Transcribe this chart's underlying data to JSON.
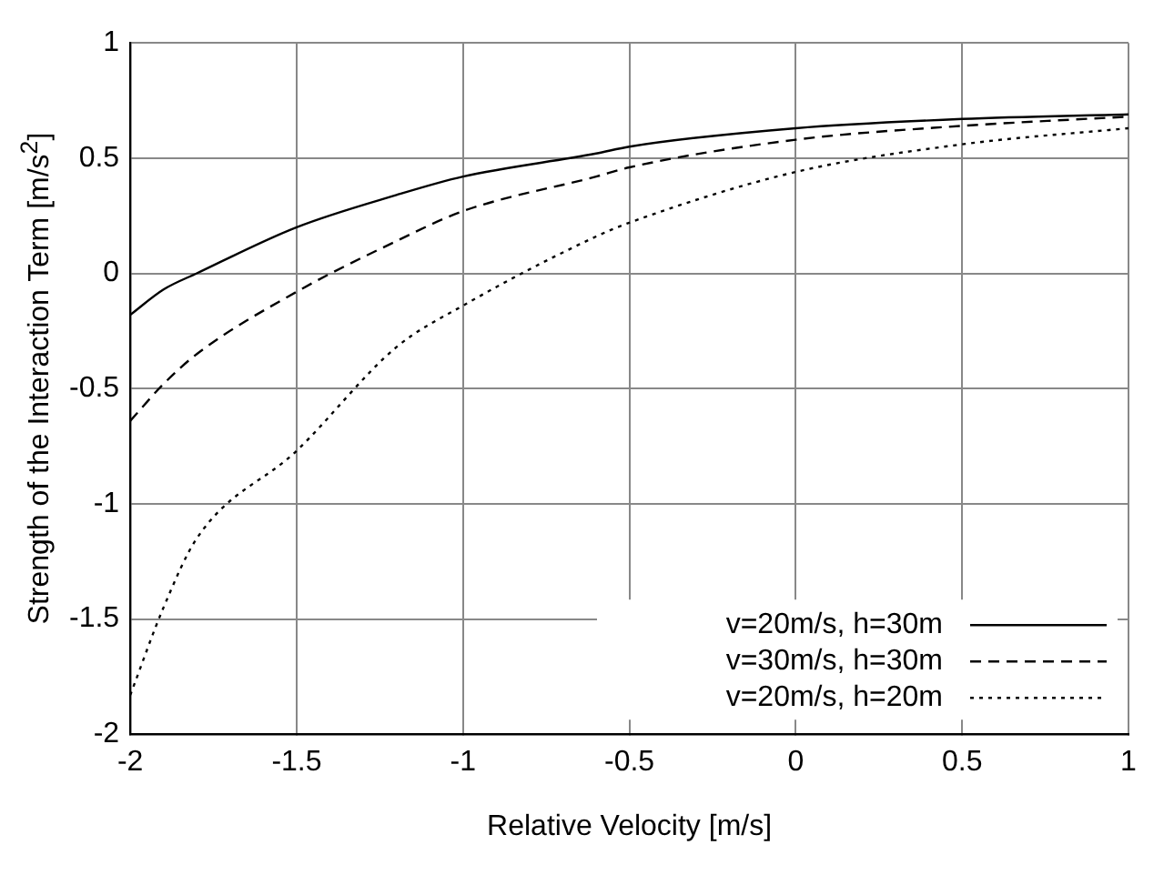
{
  "chart_data": {
    "type": "line",
    "xlabel": "Relative Velocity [m/s]",
    "ylabel": "Strength of the Interaction Term [m/s$^{2}$]",
    "x": [
      -2,
      -1.9,
      -1.8,
      -1.5,
      -1.2,
      -1,
      -0.6,
      -0.5,
      0,
      0.5,
      1
    ],
    "series": [
      {
        "name": "v=20m/s, h=30m",
        "color": "#000000",
        "line_style": "solid",
        "values": [
          -0.18,
          -0.07,
          0,
          0.2,
          0.34,
          0.42,
          0.52,
          0.55,
          0.63,
          0.67,
          0.69
        ]
      },
      {
        "name": "v=30m/s, h=30m",
        "color": "#000000",
        "line_style": "dashed",
        "values": [
          -0.64,
          -0.48,
          -0.35,
          -0.08,
          0.14,
          0.27,
          0.42,
          0.46,
          0.58,
          0.64,
          0.68
        ]
      },
      {
        "name": "v=20m/s, h=20m",
        "color": "#000000",
        "line_style": "dotted",
        "values": [
          -1.83,
          -1.45,
          -1.15,
          -0.77,
          -0.32,
          -0.14,
          0.16,
          0.22,
          0.44,
          0.56,
          0.63
        ]
      }
    ],
    "xlim": [
      -2,
      1
    ],
    "xticks": [
      -2,
      -1.5,
      -1,
      -0.5,
      0,
      0.5,
      1
    ],
    "ylim": [
      -2,
      1
    ],
    "yticks": [
      -2,
      -1.5,
      -1,
      -0.5,
      0,
      0.5,
      1
    ],
    "grid": true,
    "legend": "bottom right",
    "marker": "none"
  }
}
